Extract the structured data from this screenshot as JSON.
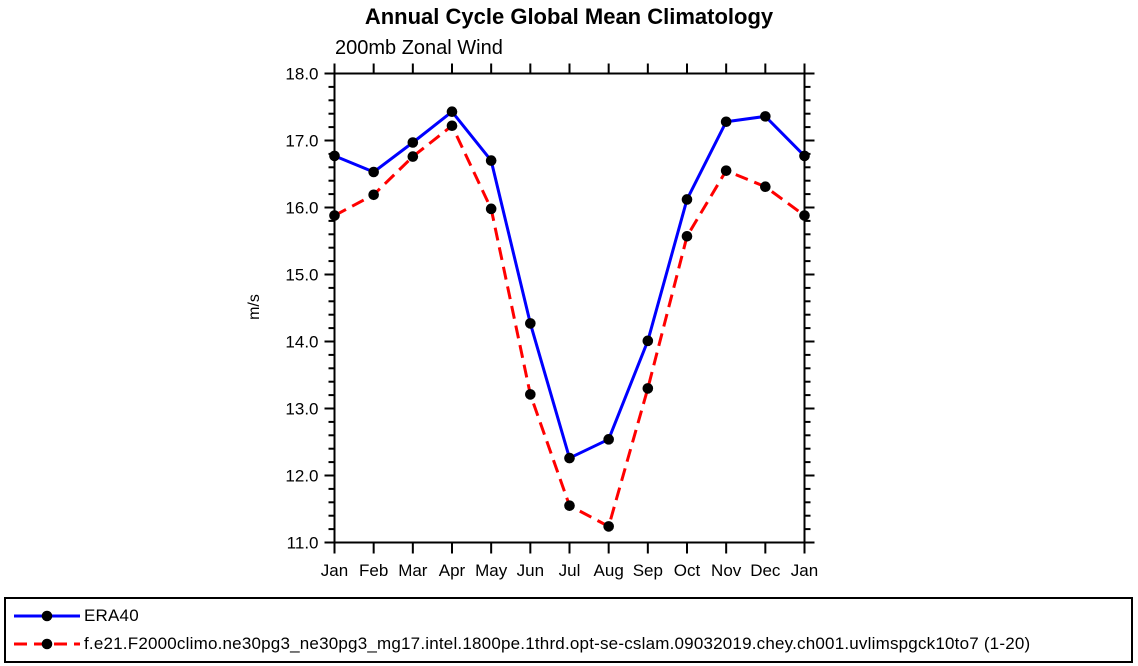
{
  "page": {
    "background": "#ffffff"
  },
  "chart_data": {
    "type": "line",
    "title": "Annual Cycle Global Mean Climatology",
    "subtitle": "200mb Zonal Wind",
    "ylabel": "m/s",
    "categories": [
      "Jan",
      "Feb",
      "Mar",
      "Apr",
      "May",
      "Jun",
      "Jul",
      "Aug",
      "Sep",
      "Oct",
      "Nov",
      "Dec",
      "Jan"
    ],
    "ylim": [
      11.0,
      18.0
    ],
    "ytick_interval": 1.0,
    "yminor_interval": 0.2,
    "ytick_format_decimals": 1,
    "grid": false,
    "legend_position": "bottom-box",
    "axis_color": "#000000",
    "marker_color": "#000000",
    "series": [
      {
        "name": "ERA40",
        "color": "#0000ff",
        "style": "solid",
        "values": [
          16.77,
          16.53,
          16.97,
          17.43,
          16.7,
          14.27,
          12.26,
          12.54,
          14.01,
          16.12,
          17.28,
          17.36,
          16.77
        ]
      },
      {
        "name": "f.e21.F2000climo.ne30pg3_ne30pg3_mg17.intel.1800pe.1thrd.opt-se-cslam.09032019.chey.ch001.uvlimspgck10to7 (1-20)",
        "color": "#ff0000",
        "style": "dashed",
        "values": [
          15.88,
          16.19,
          16.76,
          17.22,
          15.98,
          13.21,
          11.55,
          11.24,
          13.3,
          15.57,
          16.55,
          16.31,
          15.88
        ]
      }
    ]
  }
}
